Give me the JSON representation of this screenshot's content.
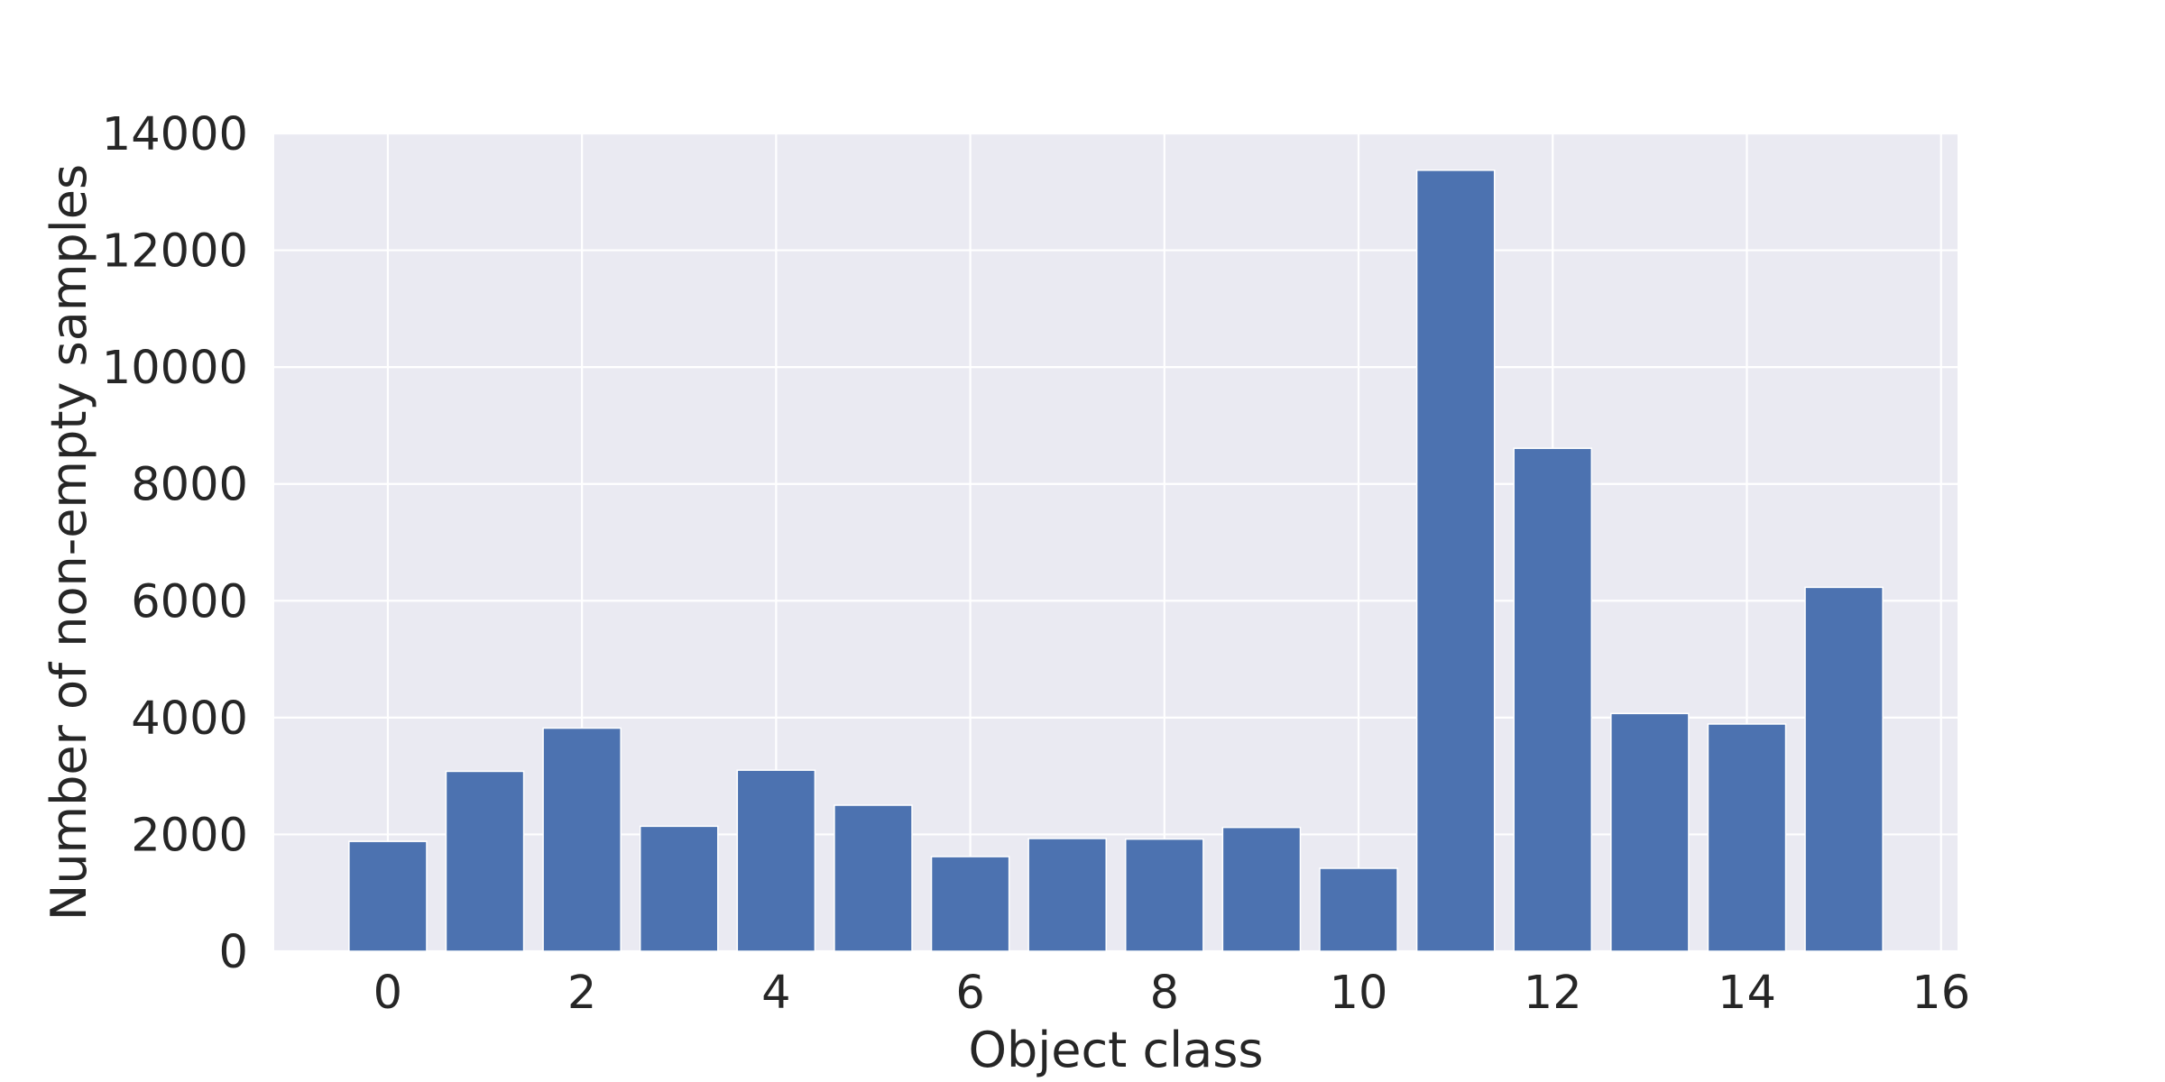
{
  "chart_data": {
    "type": "bar",
    "title": "",
    "xlabel": "Object class",
    "ylabel": "Number of non-empty samples",
    "x": [
      0,
      1,
      2,
      3,
      4,
      5,
      6,
      7,
      8,
      9,
      10,
      11,
      12,
      13,
      14,
      15
    ],
    "values": [
      1880,
      3080,
      3820,
      2140,
      3100,
      2500,
      1620,
      1930,
      1920,
      2120,
      1420,
      13370,
      8610,
      4070,
      3890,
      6230
    ],
    "xlim": [
      -1.17,
      16.17
    ],
    "ylim": [
      0,
      14000
    ],
    "xticks": [
      0,
      2,
      4,
      6,
      8,
      10,
      12,
      14,
      16
    ],
    "yticks": [
      0,
      2000,
      4000,
      6000,
      8000,
      10000,
      12000,
      14000
    ],
    "bar_width": 0.8,
    "grid": true,
    "legend": "none",
    "colors": {
      "bar": "#4c72b0",
      "plot_background": "#eaeaf2",
      "grid": "#ffffff",
      "text": "#262626"
    }
  }
}
